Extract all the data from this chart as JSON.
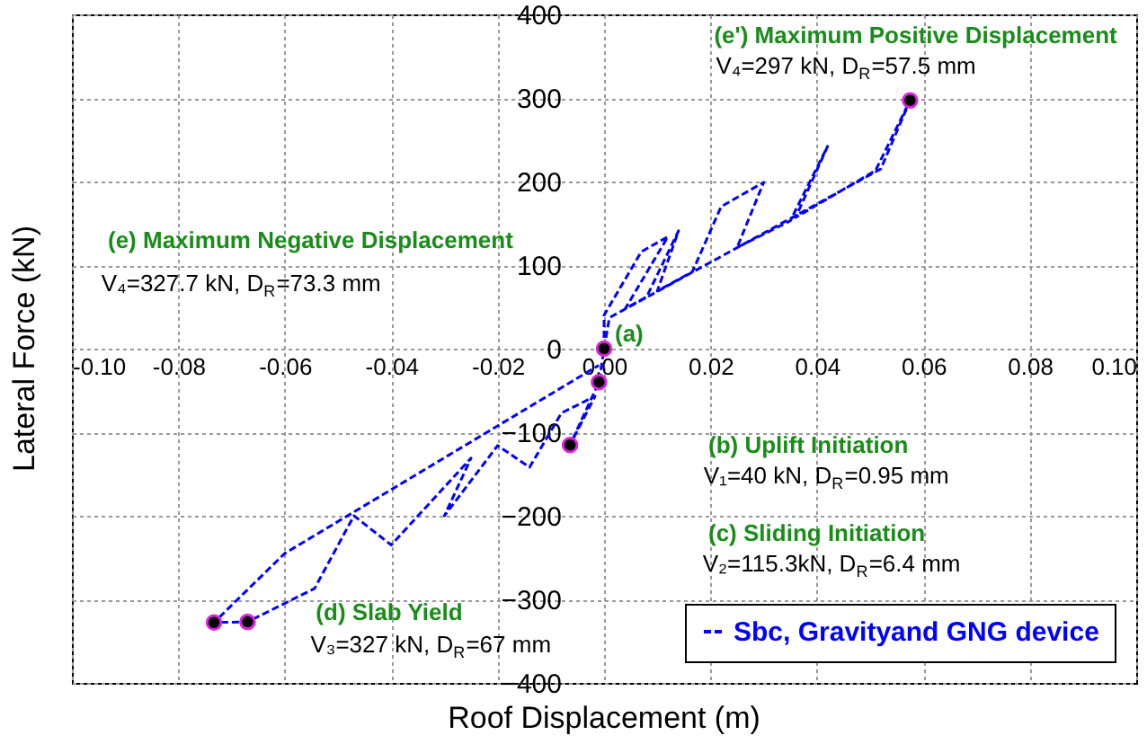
{
  "chart_data": {
    "type": "line",
    "xlabel": "Roof Displacement (m)",
    "ylabel": "Lateral Force (kN)",
    "xlim": [
      -0.1,
      0.1
    ],
    "ylim": [
      -400,
      400
    ],
    "xticks": [
      {
        "value": -0.1,
        "label": "-0.10"
      },
      {
        "value": -0.08,
        "label": "-0.08"
      },
      {
        "value": -0.06,
        "label": "-0.06"
      },
      {
        "value": -0.04,
        "label": "-0.04"
      },
      {
        "value": -0.02,
        "label": "-0.02"
      },
      {
        "value": 0,
        "label": "0.00"
      },
      {
        "value": 0.02,
        "label": "0.02"
      },
      {
        "value": 0.04,
        "label": "0.04"
      },
      {
        "value": 0.06,
        "label": "0.06"
      },
      {
        "value": 0.08,
        "label": "0.08"
      },
      {
        "value": 0.1,
        "label": "0.10"
      }
    ],
    "yticks": [
      -400,
      -300,
      -200,
      -100,
      0,
      100,
      200,
      300,
      400
    ],
    "grid": true,
    "legend": "bottom right",
    "series": [
      {
        "name": "Sbc, Gravityand GNG device",
        "color": "#0000ff",
        "line_style": "dashed",
        "marker": "none",
        "x": [
          0,
          0,
          0.007,
          0.012,
          0.004,
          0.008,
          0.014,
          0.01,
          0.0166,
          0.022,
          0.03,
          0.025,
          0.035,
          0.042,
          0.036,
          0.051,
          0.0575,
          0.052,
          0.001,
          0,
          -0.00095,
          -0.0064,
          -0.0017,
          -0.008,
          -0.014,
          -0.02,
          -0.03,
          -0.025,
          -0.04,
          -0.047,
          -0.0544,
          -0.067,
          -0.0733,
          -0.06,
          -0.001
        ],
        "values": [
          0,
          40,
          116,
          134,
          48,
          62,
          141,
          69,
          92,
          170,
          199,
          121,
          153,
          242,
          157,
          213,
          297,
          215,
          37,
          0,
          -40,
          -115.3,
          -57,
          -77,
          -142,
          -116,
          -200,
          -131,
          -235,
          -200,
          -287,
          -327,
          -327.7,
          -245,
          -20
        ]
      },
      {
        "color": "#000000",
        "type": "scatter",
        "marker": "circle",
        "x": [
          0,
          -0.00095,
          -0.0064,
          -0.067,
          -0.0733,
          0.0575
        ],
        "values": [
          0,
          -40,
          -115.3,
          -327,
          -327.7,
          297
        ]
      }
    ],
    "annotations": [
      {
        "text": "(a)",
        "x": 0,
        "y": 0
      },
      "(b) Uplift Initiation",
      "V₁=40 kN, D$_{R}$=0.95 mm",
      "(c) Sliding Initiation",
      "V₂=115.3kN, D$_{R}$=6.4 mm",
      {
        "text": "(d) Slab Yield",
        "x": -0.067,
        "y": -327
      },
      {
        "text": "V₃=327 kN, D$_{R}$=67 mm",
        "x": -0.067,
        "y": -327
      },
      "(e) Maximum Negative Displacement",
      "V₄=327.7 kN, D$_{R}$=73.3 mm",
      {
        "text": "(e') Maximum Positive Displacement",
        "x": 0.0575,
        "y": 297
      },
      {
        "text": "V₄=297 kN, D$_{R}$=57.5 mm",
        "x": 0.0575,
        "y": 297
      }
    ]
  }
}
